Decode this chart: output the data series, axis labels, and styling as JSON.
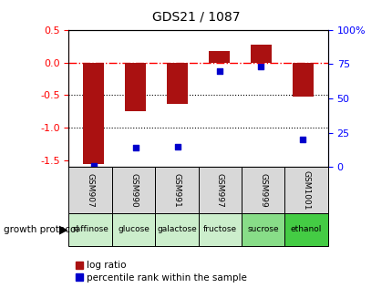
{
  "title": "GDS21 / 1087",
  "samples": [
    "GSM907",
    "GSM990",
    "GSM991",
    "GSM997",
    "GSM999",
    "GSM1001"
  ],
  "log_ratio": [
    -1.55,
    -0.75,
    -0.63,
    0.18,
    0.27,
    -0.52
  ],
  "percentile": [
    1.0,
    14.0,
    14.5,
    70.0,
    73.0,
    20.0
  ],
  "protocols": [
    "raffinose",
    "glucose",
    "galactose",
    "fructose",
    "sucrose",
    "ethanol"
  ],
  "protocol_colors": [
    "#cceecc",
    "#cceecc",
    "#cceecc",
    "#cceecc",
    "#88dd88",
    "#44cc44"
  ],
  "bar_color": "#aa1111",
  "dot_color": "#0000cc",
  "ylim_left": [
    -1.6,
    0.5
  ],
  "ylim_right": [
    0,
    100
  ],
  "right_ticks": [
    0,
    25,
    50,
    75,
    100
  ],
  "right_tick_labels": [
    "0",
    "25",
    "50",
    "75",
    "100%"
  ],
  "left_ticks": [
    -1.5,
    -1.0,
    -0.5,
    0.0,
    0.5
  ],
  "hline_y": 0.0,
  "dotted_lines": [
    -0.5,
    -1.0
  ],
  "bar_width": 0.5,
  "legend_red_label": "log ratio",
  "legend_blue_label": "percentile rank within the sample",
  "growth_label": "growth protocol"
}
